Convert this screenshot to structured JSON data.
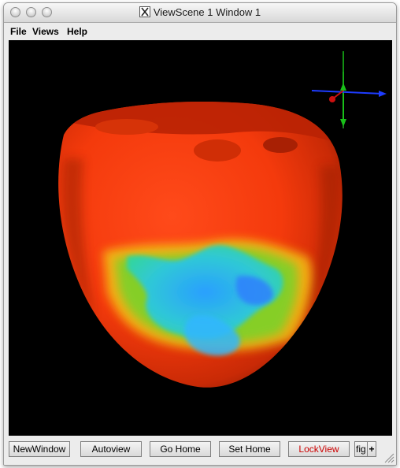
{
  "window": {
    "title": "ViewScene 1 Window 1",
    "title_icon": "x11-icon"
  },
  "menu": {
    "items": [
      "File",
      "Views",
      "Help"
    ]
  },
  "toolbar": {
    "buttons": [
      "NewWindow",
      "Autoview",
      "Go Home",
      "Set Home",
      "LockView",
      "fig"
    ],
    "more_label": "+",
    "lockview_color": "#cc0000"
  },
  "viewport": {
    "background": "#000000",
    "content": "heart-surface-render",
    "axes_colors": {
      "x": "#1e3cff",
      "y": "#19c019",
      "z": "#cc1010"
    }
  }
}
